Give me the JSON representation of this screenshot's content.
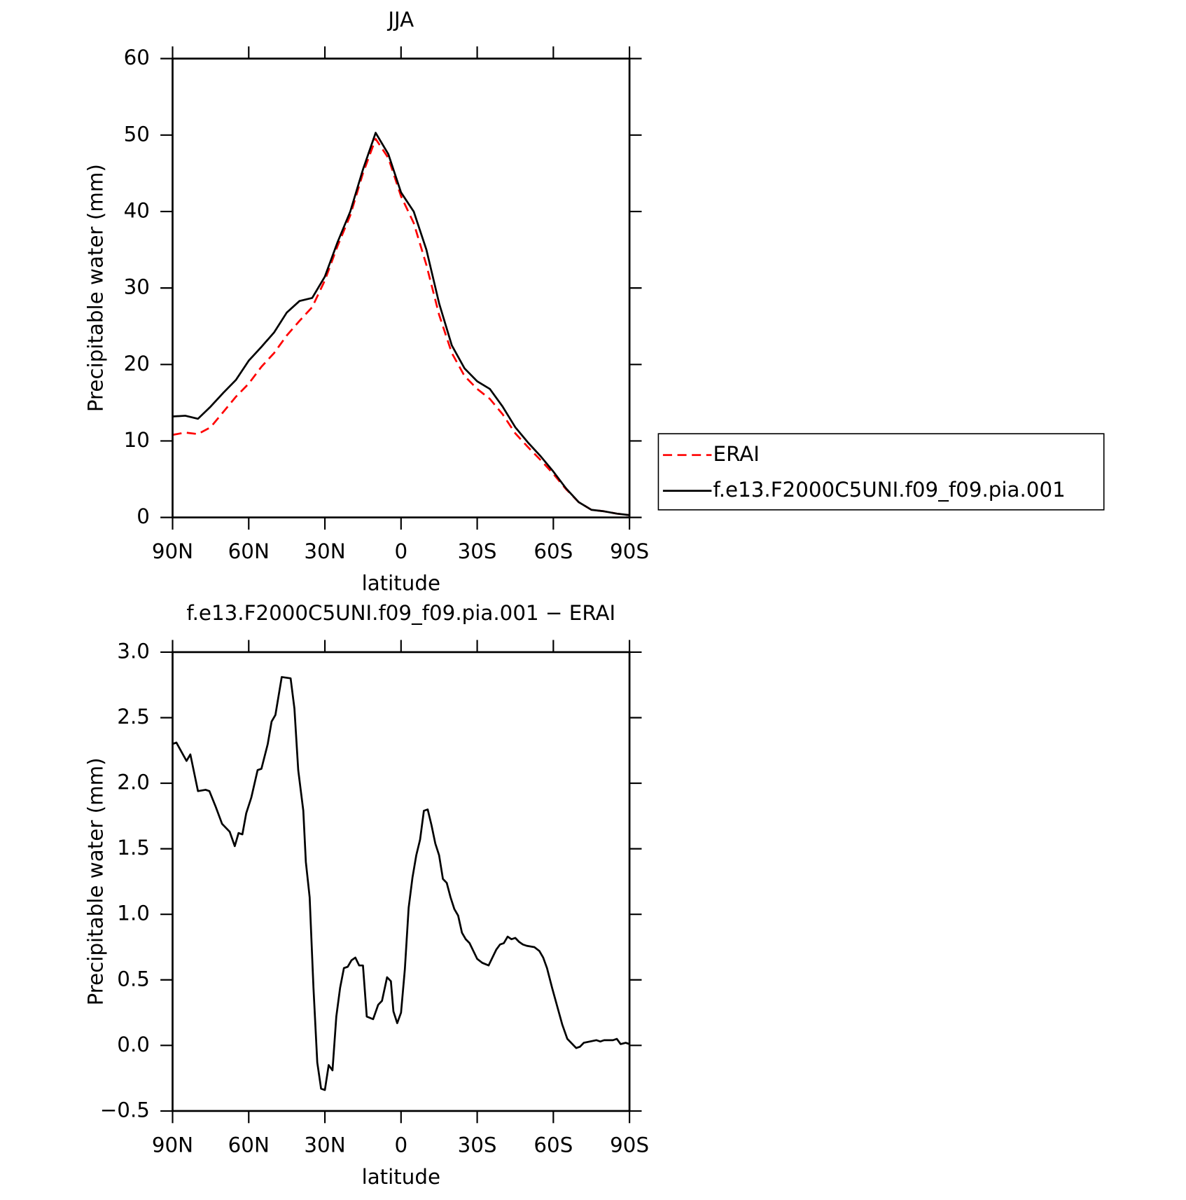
{
  "chart_data": [
    {
      "type": "line",
      "title": "JJA",
      "xlabel": "latitude",
      "ylabel": "Precipitable water (mm)",
      "x": [
        90,
        85,
        80,
        75,
        70,
        65,
        60,
        55,
        50,
        45,
        40,
        35,
        30,
        25,
        20,
        15,
        10,
        5,
        0,
        -5,
        -10,
        -15,
        -20,
        -25,
        -30,
        -35,
        -40,
        -45,
        -50,
        -55,
        -60,
        -65,
        -70,
        -75,
        -80,
        -85,
        -90
      ],
      "xlim": [
        90,
        -90
      ],
      "xticks": [
        {
          "value": 90,
          "label": "90N"
        },
        {
          "value": 60,
          "label": "60N"
        },
        {
          "value": 30,
          "label": "30N"
        },
        0,
        {
          "value": -30,
          "label": "30S"
        },
        {
          "value": -60,
          "label": "60S"
        },
        {
          "value": -90,
          "label": "90S"
        }
      ],
      "ylim": [
        0,
        60
      ],
      "yticks": [
        0,
        10,
        20,
        30,
        40,
        50,
        60
      ],
      "legend": "right",
      "series": [
        {
          "name": "ERAI",
          "color": "#ff0000",
          "dash": true,
          "values": [
            10.8,
            11.1,
            10.9,
            11.8,
            13.8,
            15.8,
            17.5,
            19.7,
            21.5,
            23.8,
            25.7,
            27.5,
            31,
            35.5,
            39.5,
            45,
            49.5,
            47,
            42,
            38.5,
            33,
            26.5,
            21.5,
            18.5,
            16.8,
            15.5,
            13.5,
            11,
            9.2,
            7.5,
            5.7,
            3.7,
            2,
            1.0,
            0.8,
            0.5,
            0.3
          ]
        },
        {
          "name": "f.e13.F2000C5UNI.f09_f09.pia.001",
          "color": "#000000",
          "dash": false,
          "values": [
            13.2,
            13.3,
            12.9,
            14.5,
            16.3,
            18,
            20.5,
            22.3,
            24.2,
            26.8,
            28.3,
            28.7,
            31.5,
            36,
            40,
            45.5,
            50.3,
            47.5,
            42.5,
            40,
            35,
            28,
            22.5,
            19.5,
            17.8,
            16.8,
            14.5,
            11.8,
            9.8,
            8,
            6,
            3.8,
            2,
            1.0,
            0.8,
            0.5,
            0.3
          ]
        }
      ]
    },
    {
      "type": "line",
      "title": "f.e13.F2000C5UNI.f09_f09.pia.001 − ERAI",
      "xlabel": "latitude",
      "ylabel": "Precipitable water (mm)",
      "color": "#000000",
      "x": [
        90,
        88.5,
        84.5,
        83,
        80,
        77,
        75.5,
        73,
        70.5,
        67.5,
        65.5,
        64,
        62.5,
        61,
        59,
        56.5,
        55,
        52.5,
        51,
        49.5,
        47,
        43.5,
        42,
        40.5,
        38.5,
        37.5,
        36,
        34.5,
        33,
        31.5,
        30,
        28.5,
        27,
        25.5,
        24,
        22.5,
        21,
        19.5,
        18,
        16.5,
        15,
        13.5,
        11,
        9,
        7.5,
        5.5,
        4,
        3,
        1.5,
        0,
        -1.5,
        -3,
        -4.5,
        -6,
        -7.5,
        -9,
        -10.5,
        -12,
        -13.5,
        -15,
        -16.5,
        -18,
        -19.5,
        -21,
        -22.5,
        -24,
        -25.5,
        -27,
        -28.5,
        -30,
        -32,
        -34.5,
        -36,
        -37.5,
        -39,
        -40.5,
        -42,
        -43.5,
        -45,
        -46.5,
        -48,
        -49.5,
        -52.5,
        -54.5,
        -56,
        -57.5,
        -59.5,
        -61.5,
        -63.5,
        -65.5,
        -67,
        -69,
        -70.5,
        -72,
        -74.5,
        -77,
        -78.5,
        -80,
        -82,
        -83.5,
        -85,
        -86.5,
        -88.5,
        -90
      ],
      "values": [
        2.3,
        2.31,
        2.17,
        2.22,
        1.94,
        1.95,
        1.94,
        1.82,
        1.69,
        1.63,
        1.52,
        1.62,
        1.61,
        1.77,
        1.89,
        2.1,
        2.11,
        2.3,
        2.47,
        2.52,
        2.81,
        2.8,
        2.57,
        2.1,
        1.79,
        1.4,
        1.13,
        0.44,
        -0.13,
        -0.33,
        -0.34,
        -0.15,
        -0.19,
        0.22,
        0.44,
        0.59,
        0.6,
        0.65,
        0.67,
        0.61,
        0.61,
        0.22,
        0.2,
        0.31,
        0.34,
        0.52,
        0.49,
        0.26,
        0.17,
        0.25,
        0.58,
        1.05,
        1.28,
        1.45,
        1.57,
        1.79,
        1.8,
        1.68,
        1.54,
        1.45,
        1.27,
        1.24,
        1.13,
        1.04,
        0.99,
        0.86,
        0.81,
        0.78,
        0.72,
        0.66,
        0.63,
        0.61,
        0.67,
        0.73,
        0.77,
        0.78,
        0.83,
        0.81,
        0.82,
        0.79,
        0.77,
        0.76,
        0.75,
        0.72,
        0.67,
        0.59,
        0.44,
        0.3,
        0.16,
        0.05,
        0.02,
        -0.02,
        -0.01,
        0.02,
        0.03,
        0.04,
        0.03,
        0.04,
        0.04,
        0.04,
        0.05,
        0.01,
        0.02,
        0.01
      ],
      "xlim": [
        90,
        -90
      ],
      "xticks": [
        {
          "value": 90,
          "label": "90N"
        },
        {
          "value": 60,
          "label": "60N"
        },
        {
          "value": 30,
          "label": "30N"
        },
        0,
        {
          "value": -30,
          "label": "30S"
        },
        {
          "value": -60,
          "label": "60S"
        },
        {
          "value": -90,
          "label": "90S"
        }
      ],
      "ylim": [
        -0.5,
        3.0
      ],
      "yticks": [
        {
          "value": -0.5,
          "label": "−0.5"
        },
        {
          "value": 0,
          "label": "0.0"
        },
        0.5,
        {
          "value": 1,
          "label": "1.0"
        },
        1.5,
        {
          "value": 2,
          "label": "2.0"
        },
        2.5,
        {
          "value": 3,
          "label": "3.0"
        }
      ]
    }
  ]
}
